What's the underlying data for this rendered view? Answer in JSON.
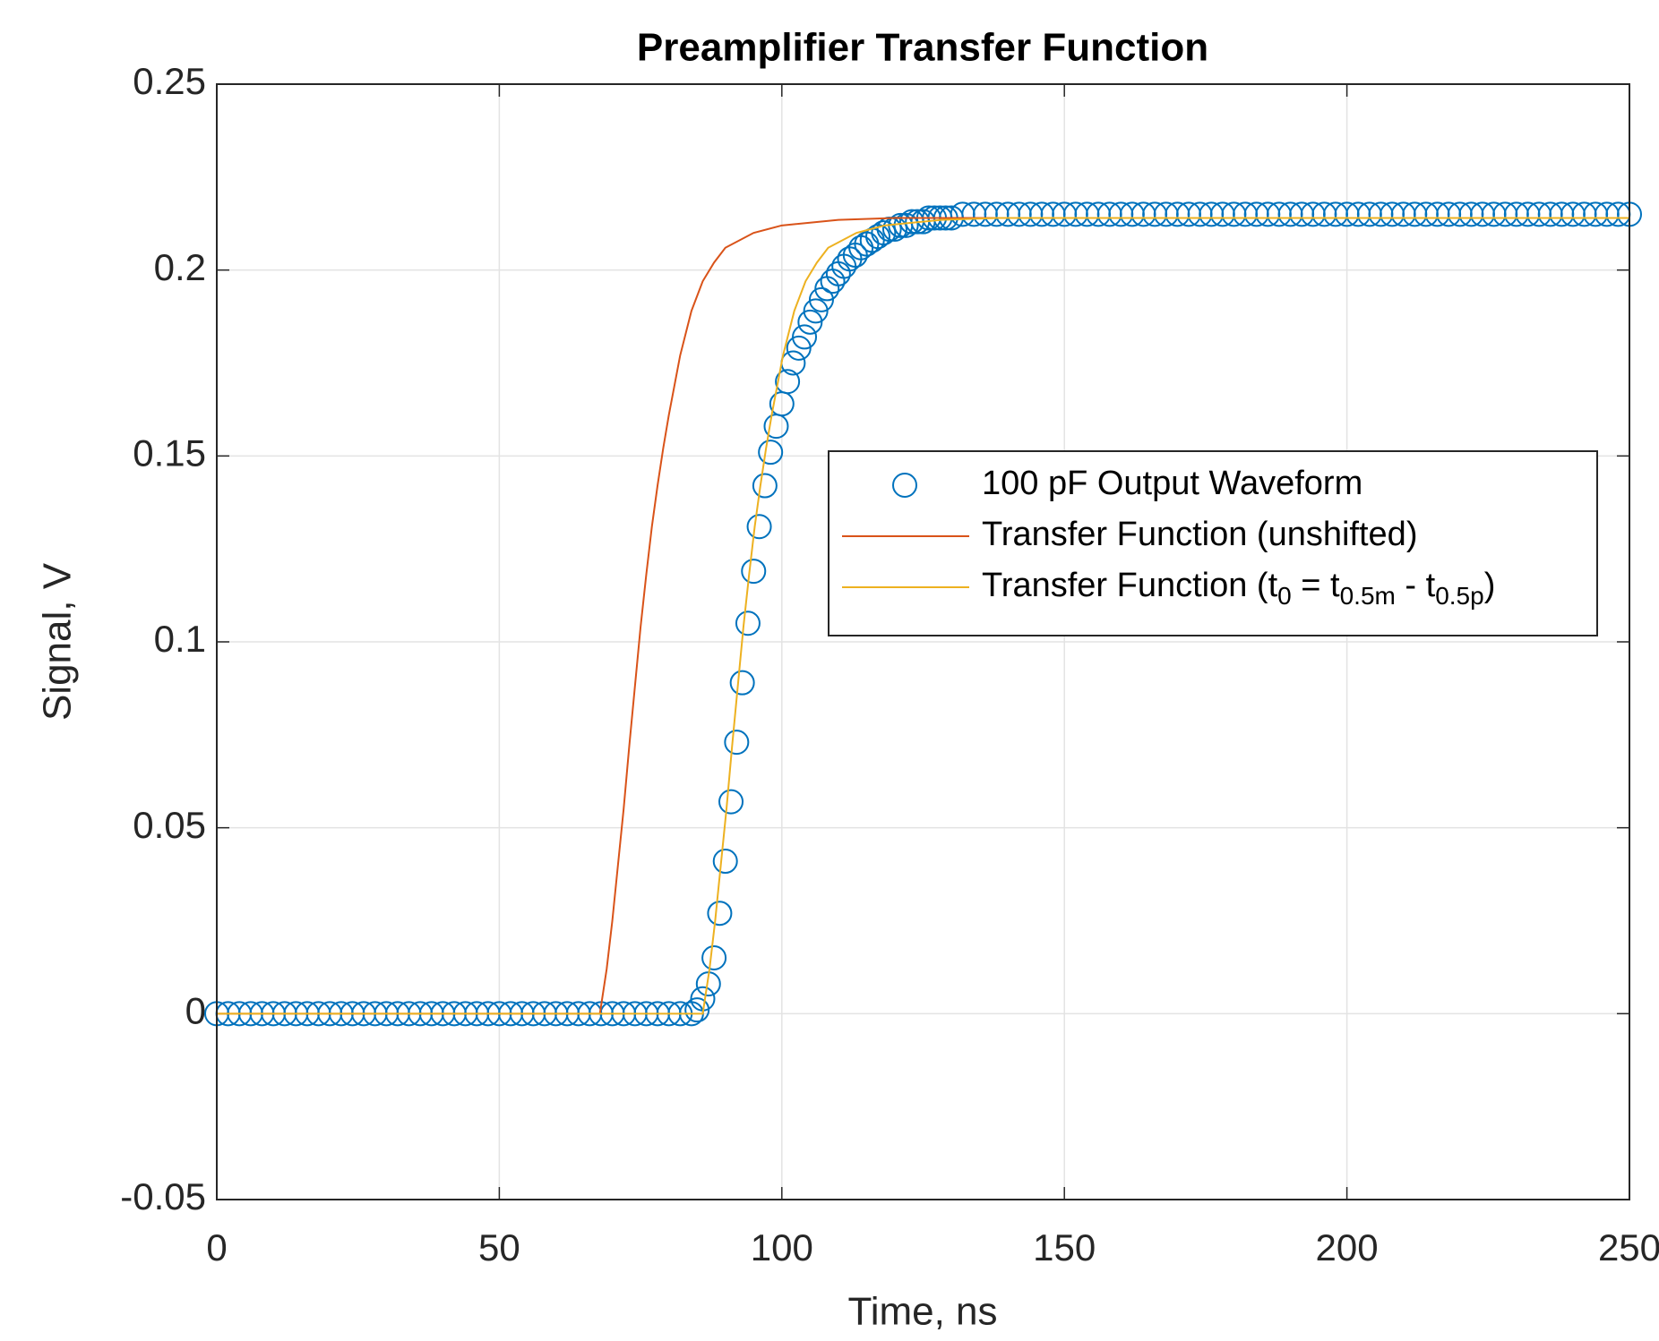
{
  "chart_data": {
    "type": "line",
    "title": "Preamplifier Transfer Function",
    "x_label": "Time, ns",
    "y_label": "Signal, V",
    "xlim": [
      0,
      250
    ],
    "ylim": [
      -0.05,
      0.25
    ],
    "xticks": [
      0,
      50,
      100,
      150,
      200,
      250
    ],
    "yticks": [
      -0.05,
      0,
      0.05,
      0.1,
      0.15,
      0.2,
      0.25
    ],
    "grid": true,
    "legend": "right",
    "series": [
      {
        "name": "100 pF Output Waveform",
        "color": "#0072bd",
        "style": "marker",
        "x": [
          0,
          2,
          4,
          6,
          8,
          10,
          12,
          14,
          16,
          18,
          20,
          22,
          24,
          26,
          28,
          30,
          32,
          34,
          36,
          38,
          40,
          42,
          44,
          46,
          48,
          50,
          52,
          54,
          56,
          58,
          60,
          62,
          64,
          66,
          68,
          70,
          72,
          74,
          76,
          78,
          80,
          82,
          84,
          85,
          86,
          87,
          88,
          89,
          90,
          91,
          92,
          93,
          94,
          95,
          96,
          97,
          98,
          99,
          100,
          101,
          102,
          103,
          104,
          105,
          106,
          107,
          108,
          109,
          110,
          111,
          112,
          113,
          114,
          115,
          116,
          117,
          118,
          119,
          120,
          121,
          122,
          123,
          124,
          125,
          126,
          127,
          128,
          129,
          130,
          132,
          134,
          136,
          138,
          140,
          142,
          144,
          146,
          148,
          150,
          152,
          154,
          156,
          158,
          160,
          162,
          164,
          166,
          168,
          170,
          172,
          174,
          176,
          178,
          180,
          182,
          184,
          186,
          188,
          190,
          192,
          194,
          196,
          198,
          200,
          202,
          204,
          206,
          208,
          210,
          212,
          214,
          216,
          218,
          220,
          222,
          224,
          226,
          228,
          230,
          232,
          234,
          236,
          238,
          240,
          242,
          244,
          246,
          248,
          250
        ],
        "values": [
          0,
          0,
          0,
          0,
          0,
          0,
          0,
          0,
          0,
          0,
          0,
          0,
          0,
          0,
          0,
          0,
          0,
          0,
          0,
          0,
          0,
          0,
          0,
          0,
          0,
          0,
          0,
          0,
          0,
          0,
          0,
          0,
          0,
          0,
          0,
          0,
          0,
          0,
          0,
          0,
          0,
          0,
          0,
          0.001,
          0.004,
          0.008,
          0.015,
          0.027,
          0.041,
          0.057,
          0.073,
          0.089,
          0.105,
          0.119,
          0.131,
          0.142,
          0.151,
          0.158,
          0.164,
          0.17,
          0.175,
          0.179,
          0.182,
          0.186,
          0.189,
          0.192,
          0.195,
          0.197,
          0.199,
          0.201,
          0.203,
          0.204,
          0.206,
          0.207,
          0.208,
          0.209,
          0.21,
          0.211,
          0.211,
          0.212,
          0.212,
          0.213,
          0.213,
          0.213,
          0.214,
          0.214,
          0.214,
          0.214,
          0.214,
          0.215,
          0.215,
          0.215,
          0.215,
          0.215,
          0.215,
          0.215,
          0.215,
          0.215,
          0.215,
          0.215,
          0.215,
          0.215,
          0.215,
          0.215,
          0.215,
          0.215,
          0.215,
          0.215,
          0.215,
          0.215,
          0.215,
          0.215,
          0.215,
          0.215,
          0.215,
          0.215,
          0.215,
          0.215,
          0.215,
          0.215,
          0.215,
          0.215,
          0.215,
          0.215,
          0.215,
          0.215,
          0.215,
          0.215,
          0.215,
          0.215,
          0.215,
          0.215,
          0.215,
          0.215,
          0.215,
          0.215,
          0.215,
          0.215,
          0.215,
          0.215,
          0.215,
          0.215,
          0.215,
          0.215,
          0.215,
          0.215,
          0.215,
          0.215,
          0.215
        ]
      },
      {
        "name": "Transfer Function (unshifted)",
        "color": "#d95319",
        "style": "line",
        "x": [
          0,
          67.8,
          69,
          70,
          71,
          72,
          73,
          74,
          75,
          76,
          77,
          78,
          79,
          80,
          82,
          84,
          86,
          88,
          90,
          95,
          100,
          110,
          120,
          250
        ],
        "values": [
          0,
          0,
          0.012,
          0.025,
          0.04,
          0.055,
          0.072,
          0.088,
          0.104,
          0.118,
          0.131,
          0.142,
          0.152,
          0.161,
          0.177,
          0.189,
          0.197,
          0.202,
          0.206,
          0.21,
          0.212,
          0.2135,
          0.214,
          0.214
        ]
      },
      {
        "name": "Transfer Function (t_{0} = t_{0.5m} - t_{0.5p})",
        "color": "#edb120",
        "style": "line",
        "x": [
          0,
          86,
          87.2,
          88.2,
          89.2,
          90.2,
          91.2,
          92.2,
          93.2,
          94.2,
          95.2,
          96.2,
          97.2,
          98.2,
          100.2,
          102.2,
          104.2,
          106.2,
          108.2,
          113.2,
          118.2,
          128.2,
          138.2,
          250
        ],
        "values": [
          0,
          0,
          0.012,
          0.025,
          0.04,
          0.055,
          0.072,
          0.088,
          0.104,
          0.118,
          0.131,
          0.142,
          0.152,
          0.161,
          0.177,
          0.189,
          0.197,
          0.202,
          0.206,
          0.21,
          0.212,
          0.2135,
          0.214,
          0.214
        ]
      }
    ]
  }
}
